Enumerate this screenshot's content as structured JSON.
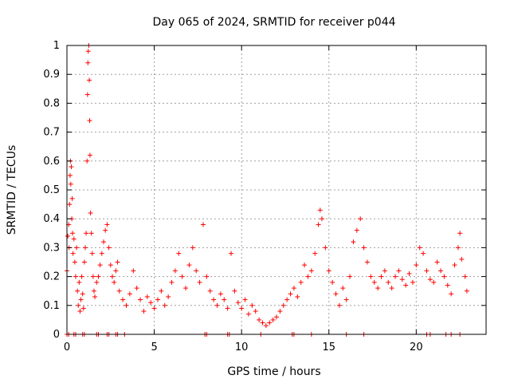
{
  "chart_data": {
    "type": "scatter",
    "title": "Day 065 of 2024, SRMTID for receiver p044",
    "xlabel": "GPS time / hours",
    "ylabel": "SRMTID / TECUs",
    "xlim": [
      0,
      24
    ],
    "ylim": [
      0,
      1
    ],
    "grid": true,
    "marker": "plus",
    "color": "#ff0000",
    "x_ticks": [
      0,
      5,
      10,
      15,
      20
    ],
    "x_tick_labels": [
      "0",
      "5",
      "10",
      "15",
      "20"
    ],
    "y_ticks": [
      0,
      0.1,
      0.2,
      0.3,
      0.4,
      0.5,
      0.6,
      0.7,
      0.8,
      0.9,
      1
    ],
    "y_tick_labels": [
      "0",
      "0.1",
      "0.2",
      "0.3",
      "0.4",
      "0.5",
      "0.6",
      "0.7",
      "0.8",
      "0.9",
      "1"
    ],
    "series": [
      {
        "name": "SRMTID",
        "points": [
          [
            0.0,
            0.22
          ],
          [
            0.05,
            0.34
          ],
          [
            0.1,
            0.38
          ],
          [
            0.12,
            0.3
          ],
          [
            0.15,
            0.45
          ],
          [
            0.18,
            0.55
          ],
          [
            0.2,
            0.6
          ],
          [
            0.22,
            0.52
          ],
          [
            0.25,
            0.58
          ],
          [
            0.28,
            0.4
          ],
          [
            0.3,
            0.47
          ],
          [
            0.32,
            0.35
          ],
          [
            0.35,
            0.28
          ],
          [
            0.4,
            0.33
          ],
          [
            0.45,
            0.25
          ],
          [
            0.5,
            0.2
          ],
          [
            0.55,
            0.3
          ],
          [
            0.6,
            0.15
          ],
          [
            0.65,
            0.1
          ],
          [
            0.7,
            0.18
          ],
          [
            0.75,
            0.08
          ],
          [
            0.8,
            0.12
          ],
          [
            0.85,
            0.2
          ],
          [
            0.9,
            0.14
          ],
          [
            0.95,
            0.09
          ],
          [
            1.0,
            0.25
          ],
          [
            1.05,
            0.3
          ],
          [
            1.1,
            0.35
          ],
          [
            1.15,
            0.6
          ],
          [
            1.18,
            0.83
          ],
          [
            1.2,
            0.94
          ],
          [
            1.22,
            0.98
          ],
          [
            1.25,
            1.0
          ],
          [
            1.28,
            0.88
          ],
          [
            1.3,
            0.74
          ],
          [
            1.32,
            0.62
          ],
          [
            1.35,
            0.42
          ],
          [
            1.4,
            0.35
          ],
          [
            1.45,
            0.28
          ],
          [
            1.5,
            0.2
          ],
          [
            1.55,
            0.15
          ],
          [
            1.6,
            0.13
          ],
          [
            1.7,
            0.18
          ],
          [
            1.8,
            0.2
          ],
          [
            1.9,
            0.24
          ],
          [
            2.0,
            0.28
          ],
          [
            2.1,
            0.32
          ],
          [
            2.2,
            0.36
          ],
          [
            2.3,
            0.38
          ],
          [
            2.4,
            0.3
          ],
          [
            2.5,
            0.24
          ],
          [
            2.6,
            0.2
          ],
          [
            2.7,
            0.18
          ],
          [
            2.8,
            0.22
          ],
          [
            2.9,
            0.25
          ],
          [
            3.0,
            0.15
          ],
          [
            3.2,
            0.12
          ],
          [
            3.4,
            0.1
          ],
          [
            3.6,
            0.14
          ],
          [
            3.8,
            0.22
          ],
          [
            4.0,
            0.16
          ],
          [
            4.2,
            0.12
          ],
          [
            4.4,
            0.08
          ],
          [
            4.6,
            0.13
          ],
          [
            4.8,
            0.11
          ],
          [
            5.0,
            0.09
          ],
          [
            5.2,
            0.12
          ],
          [
            5.4,
            0.15
          ],
          [
            5.6,
            0.1
          ],
          [
            5.8,
            0.13
          ],
          [
            6.0,
            0.18
          ],
          [
            6.2,
            0.22
          ],
          [
            6.4,
            0.28
          ],
          [
            6.6,
            0.2
          ],
          [
            6.8,
            0.16
          ],
          [
            7.0,
            0.24
          ],
          [
            7.2,
            0.3
          ],
          [
            7.4,
            0.22
          ],
          [
            7.6,
            0.18
          ],
          [
            7.8,
            0.38
          ],
          [
            8.0,
            0.2
          ],
          [
            8.2,
            0.15
          ],
          [
            8.4,
            0.12
          ],
          [
            8.6,
            0.1
          ],
          [
            8.8,
            0.14
          ],
          [
            9.0,
            0.12
          ],
          [
            9.2,
            0.09
          ],
          [
            9.4,
            0.28
          ],
          [
            9.6,
            0.15
          ],
          [
            9.8,
            0.11
          ],
          [
            10.0,
            0.09
          ],
          [
            10.2,
            0.12
          ],
          [
            10.4,
            0.07
          ],
          [
            10.6,
            0.1
          ],
          [
            10.8,
            0.08
          ],
          [
            11.0,
            0.05
          ],
          [
            11.2,
            0.04
          ],
          [
            11.4,
            0.03
          ],
          [
            11.6,
            0.04
          ],
          [
            11.8,
            0.05
          ],
          [
            12.0,
            0.06
          ],
          [
            12.2,
            0.08
          ],
          [
            12.4,
            0.1
          ],
          [
            12.6,
            0.12
          ],
          [
            12.8,
            0.14
          ],
          [
            13.0,
            0.16
          ],
          [
            13.2,
            0.13
          ],
          [
            13.4,
            0.18
          ],
          [
            13.6,
            0.24
          ],
          [
            13.8,
            0.2
          ],
          [
            14.0,
            0.22
          ],
          [
            14.2,
            0.28
          ],
          [
            14.4,
            0.38
          ],
          [
            14.5,
            0.43
          ],
          [
            14.6,
            0.4
          ],
          [
            14.8,
            0.3
          ],
          [
            15.0,
            0.22
          ],
          [
            15.2,
            0.18
          ],
          [
            15.4,
            0.14
          ],
          [
            15.6,
            0.1
          ],
          [
            15.8,
            0.16
          ],
          [
            16.0,
            0.12
          ],
          [
            16.2,
            0.2
          ],
          [
            16.4,
            0.32
          ],
          [
            16.6,
            0.36
          ],
          [
            16.8,
            0.4
          ],
          [
            17.0,
            0.3
          ],
          [
            17.2,
            0.25
          ],
          [
            17.4,
            0.2
          ],
          [
            17.6,
            0.18
          ],
          [
            17.8,
            0.16
          ],
          [
            18.0,
            0.2
          ],
          [
            18.2,
            0.22
          ],
          [
            18.4,
            0.18
          ],
          [
            18.6,
            0.16
          ],
          [
            18.8,
            0.2
          ],
          [
            19.0,
            0.22
          ],
          [
            19.2,
            0.19
          ],
          [
            19.4,
            0.17
          ],
          [
            19.6,
            0.21
          ],
          [
            19.8,
            0.18
          ],
          [
            20.0,
            0.24
          ],
          [
            20.2,
            0.3
          ],
          [
            20.4,
            0.28
          ],
          [
            20.6,
            0.22
          ],
          [
            20.8,
            0.19
          ],
          [
            21.0,
            0.18
          ],
          [
            21.2,
            0.25
          ],
          [
            21.4,
            0.22
          ],
          [
            21.6,
            0.2
          ],
          [
            21.8,
            0.17
          ],
          [
            22.0,
            0.14
          ],
          [
            22.2,
            0.24
          ],
          [
            22.4,
            0.3
          ],
          [
            22.5,
            0.35
          ],
          [
            22.6,
            0.26
          ],
          [
            22.8,
            0.2
          ],
          [
            22.9,
            0.15
          ]
        ]
      }
    ],
    "zero_markers_x": [
      0.0,
      0.1,
      0.4,
      0.5,
      0.9,
      1.0,
      1.7,
      1.8,
      2.3,
      2.4,
      2.8,
      2.9,
      3.3,
      7.9,
      8.0,
      9.2,
      9.3,
      11.1,
      12.9,
      13.0,
      14.0,
      16.0,
      17.0,
      20.6,
      20.8,
      21.7,
      22.0,
      22.5
    ]
  }
}
